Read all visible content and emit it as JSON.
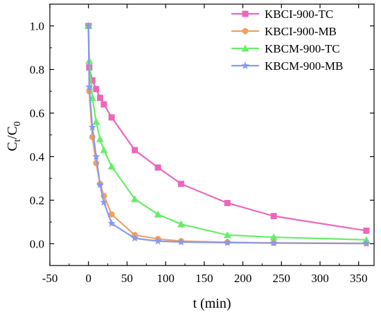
{
  "chart_data": {
    "type": "line",
    "xlabel": "t (min)",
    "ylabel_main": "C",
    "ylabel_sub1": "t",
    "ylabel_sep": "/C",
    "ylabel_sub2": "0",
    "xlim": [
      -50,
      370
    ],
    "ylim": [
      -0.1,
      1.1
    ],
    "xticks": [
      -50,
      0,
      50,
      100,
      150,
      200,
      250,
      300,
      350
    ],
    "yticks": [
      "0.0",
      "0.2",
      "0.4",
      "0.6",
      "0.8",
      "1.0"
    ],
    "ytick_values": [
      0.0,
      0.2,
      0.4,
      0.6,
      0.8,
      1.0
    ],
    "legend_position": "top-right",
    "grid": false,
    "series": [
      {
        "name": "KBCI-900-TC",
        "color": "#ee66bb",
        "marker": "square",
        "points": [
          [
            0,
            1.0
          ],
          [
            1,
            0.81
          ],
          [
            5,
            0.75
          ],
          [
            10,
            0.71
          ],
          [
            15,
            0.67
          ],
          [
            20,
            0.64
          ],
          [
            30,
            0.58
          ],
          [
            60,
            0.43
          ],
          [
            90,
            0.35
          ],
          [
            120,
            0.275
          ],
          [
            180,
            0.187
          ],
          [
            240,
            0.127
          ],
          [
            360,
            0.06
          ]
        ]
      },
      {
        "name": "KBCI-900-MB",
        "color": "#f0a060",
        "marker": "circle",
        "points": [
          [
            0,
            1.0
          ],
          [
            1,
            0.7
          ],
          [
            5,
            0.49
          ],
          [
            10,
            0.37
          ],
          [
            15,
            0.275
          ],
          [
            20,
            0.22
          ],
          [
            30,
            0.135
          ],
          [
            60,
            0.04
          ],
          [
            90,
            0.022
          ],
          [
            120,
            0.012
          ],
          [
            180,
            0.007
          ],
          [
            240,
            0.004
          ],
          [
            360,
            0.002
          ]
        ]
      },
      {
        "name": "KBCM-900-TC",
        "color": "#66ee66",
        "marker": "triangle",
        "points": [
          [
            0,
            1.0
          ],
          [
            1,
            0.84
          ],
          [
            5,
            0.67
          ],
          [
            10,
            0.56
          ],
          [
            15,
            0.48
          ],
          [
            20,
            0.43
          ],
          [
            30,
            0.355
          ],
          [
            60,
            0.205
          ],
          [
            90,
            0.135
          ],
          [
            120,
            0.09
          ],
          [
            180,
            0.04
          ],
          [
            240,
            0.03
          ],
          [
            360,
            0.018
          ]
        ]
      },
      {
        "name": "KBCM-900-MB",
        "color": "#8899ee",
        "marker": "star",
        "points": [
          [
            0,
            1.0
          ],
          [
            1,
            0.72
          ],
          [
            5,
            0.535
          ],
          [
            10,
            0.4
          ],
          [
            15,
            0.27
          ],
          [
            20,
            0.19
          ],
          [
            30,
            0.093
          ],
          [
            60,
            0.025
          ],
          [
            90,
            0.012
          ],
          [
            120,
            0.008
          ],
          [
            180,
            0.005
          ],
          [
            240,
            0.003
          ],
          [
            360,
            0.001
          ]
        ]
      }
    ]
  }
}
